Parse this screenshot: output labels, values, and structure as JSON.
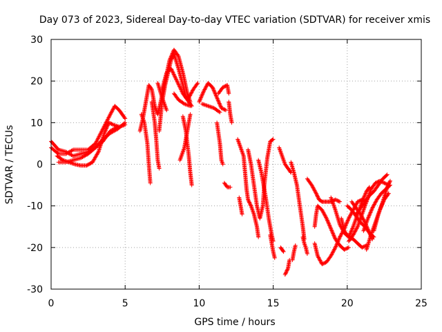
{
  "chart_data": {
    "type": "scatter",
    "title": "Day 073 of 2023, Sidereal Day-to-day VTEC variation (SDTVAR) for receiver xmis",
    "xlabel": "GPS time / hours",
    "ylabel": "SDTVAR / TECUs",
    "xlim": [
      0,
      25
    ],
    "ylim": [
      -30,
      30
    ],
    "xticks": [
      "0",
      "5",
      "10",
      "15",
      "20",
      "25"
    ],
    "yticks": [
      "-30",
      "-20",
      "-10",
      "0",
      "10",
      "20",
      "30"
    ],
    "grid": true,
    "marker": "+",
    "color": "#ff0000",
    "tracks": [
      [
        [
          0,
          5.5
        ],
        [
          0.5,
          3.5
        ],
        [
          1.0,
          3.0
        ],
        [
          1.5,
          2.0
        ],
        [
          2.0,
          2.5
        ],
        [
          2.5,
          3.0
        ],
        [
          3.0,
          4.0
        ],
        [
          3.5,
          6.0
        ],
        [
          4.0,
          7.5
        ],
        [
          4.5,
          8.5
        ],
        [
          5.0,
          10.0
        ]
      ],
      [
        [
          0,
          4.0
        ],
        [
          0.5,
          2.5
        ],
        [
          1.0,
          2.5
        ],
        [
          1.5,
          3.5
        ],
        [
          2.0,
          3.5
        ],
        [
          2.5,
          3.5
        ],
        [
          3.0,
          5.0
        ],
        [
          3.5,
          8.5
        ],
        [
          4.0,
          12.0
        ],
        [
          4.3,
          14.0
        ],
        [
          4.6,
          13.0
        ],
        [
          5.0,
          11.0
        ]
      ],
      [
        [
          0.4,
          2.0
        ],
        [
          0.8,
          1.0
        ],
        [
          1.2,
          0.5
        ],
        [
          1.6,
          0.0
        ],
        [
          2.0,
          -0.3
        ],
        [
          2.4,
          -0.3
        ],
        [
          2.8,
          0.5
        ],
        [
          3.2,
          3.0
        ],
        [
          3.6,
          7.5
        ],
        [
          3.9,
          10.0
        ],
        [
          4.2,
          9.5
        ],
        [
          4.6,
          9.0
        ],
        [
          5.0,
          9.5
        ]
      ],
      [
        [
          0.5,
          0.5
        ],
        [
          1.0,
          0.5
        ],
        [
          1.5,
          1.0
        ],
        [
          2.0,
          1.5
        ],
        [
          2.5,
          2.5
        ],
        [
          3.0,
          4.0
        ],
        [
          3.5,
          5.5
        ],
        [
          4.0,
          8.0
        ],
        [
          4.5,
          9.0
        ]
      ],
      [
        [
          6.0,
          8.0
        ],
        [
          6.2,
          11.0
        ],
        [
          6.4,
          15.0
        ],
        [
          6.6,
          19.0
        ],
        [
          6.8,
          18.0
        ],
        [
          7.0,
          14.0
        ],
        [
          7.2,
          12.0
        ],
        [
          7.4,
          15.0
        ],
        [
          7.7,
          20.0
        ],
        [
          8.0,
          25.0
        ],
        [
          8.3,
          27.5
        ],
        [
          8.6,
          26.0
        ],
        [
          8.9,
          22.0
        ],
        [
          9.2,
          17.0
        ],
        [
          9.4,
          15.0
        ]
      ],
      [
        [
          6.1,
          12.0
        ],
        [
          6.3,
          10.0
        ],
        [
          6.5,
          5.0
        ],
        [
          6.6,
          0.0
        ],
        [
          6.7,
          -4.5
        ]
      ],
      [
        [
          6.8,
          15.0
        ],
        [
          7.0,
          10.0
        ],
        [
          7.1,
          6.0
        ],
        [
          7.2,
          1.0
        ],
        [
          7.3,
          -1.0
        ]
      ],
      [
        [
          7.3,
          8.0
        ],
        [
          7.5,
          15.0
        ],
        [
          7.7,
          19.0
        ],
        [
          7.9,
          22.0
        ],
        [
          8.1,
          25.0
        ],
        [
          8.3,
          26.5
        ],
        [
          8.6,
          23.0
        ],
        [
          8.9,
          19.0
        ],
        [
          9.1,
          16.0
        ],
        [
          9.3,
          16.0
        ]
      ],
      [
        [
          7.5,
          18.0
        ],
        [
          7.8,
          22.0
        ],
        [
          8.1,
          23.0
        ],
        [
          8.5,
          20.0
        ],
        [
          8.9,
          17.0
        ],
        [
          9.3,
          15.0
        ],
        [
          9.5,
          14.0
        ]
      ],
      [
        [
          8.3,
          17.0
        ],
        [
          8.6,
          15.5
        ],
        [
          9.0,
          14.5
        ],
        [
          9.4,
          14.0
        ]
      ],
      [
        [
          7.2,
          19.5
        ],
        [
          7.5,
          16.0
        ],
        [
          7.8,
          13.0
        ]
      ],
      [
        [
          8.7,
          1.0
        ],
        [
          9.0,
          4.0
        ],
        [
          9.2,
          8.0
        ],
        [
          9.4,
          12.0
        ]
      ],
      [
        [
          8.9,
          11.5
        ],
        [
          9.1,
          8.0
        ],
        [
          9.3,
          2.0
        ],
        [
          9.4,
          -2.0
        ],
        [
          9.5,
          -5.0
        ]
      ],
      [
        [
          9.3,
          16.0
        ],
        [
          9.6,
          18.0
        ],
        [
          9.9,
          19.5
        ]
      ],
      [
        [
          10.0,
          15.0
        ],
        [
          10.3,
          17.5
        ],
        [
          10.6,
          19.5
        ],
        [
          10.9,
          18.5
        ],
        [
          11.2,
          16.0
        ],
        [
          11.5,
          13.5
        ],
        [
          11.8,
          13.0
        ]
      ],
      [
        [
          10.2,
          14.5
        ],
        [
          10.6,
          14.0
        ],
        [
          11.0,
          13.5
        ],
        [
          11.4,
          12.5
        ]
      ],
      [
        [
          11.3,
          17.0
        ],
        [
          11.6,
          18.5
        ],
        [
          11.9,
          19.0
        ],
        [
          12.0,
          17.0
        ]
      ],
      [
        [
          11.2,
          10.0
        ],
        [
          11.4,
          5.0
        ],
        [
          11.5,
          1.0
        ],
        [
          11.6,
          0.0
        ]
      ],
      [
        [
          12.0,
          15.0
        ],
        [
          12.1,
          12.0
        ],
        [
          12.2,
          10.0
        ]
      ],
      [
        [
          11.7,
          -4.5
        ],
        [
          11.9,
          -5.5
        ],
        [
          12.1,
          -5.5
        ]
      ],
      [
        [
          12.6,
          6.0
        ],
        [
          12.8,
          4.0
        ],
        [
          13.0,
          2.0
        ],
        [
          13.1,
          -2.0
        ],
        [
          13.2,
          -6.0
        ],
        [
          13.3,
          -8.5
        ],
        [
          13.5,
          -10.0
        ],
        [
          13.7,
          -12.0
        ],
        [
          13.9,
          -15.0
        ],
        [
          14.0,
          -17.5
        ]
      ],
      [
        [
          12.7,
          -8.0
        ],
        [
          12.8,
          -10.0
        ],
        [
          12.9,
          -12.0
        ]
      ],
      [
        [
          13.3,
          3.5
        ],
        [
          13.5,
          0.0
        ],
        [
          13.7,
          -5.0
        ],
        [
          13.9,
          -10.0
        ],
        [
          14.1,
          -13.0
        ],
        [
          14.3,
          -10.0
        ],
        [
          14.4,
          -5.0
        ],
        [
          14.6,
          1.5
        ],
        [
          14.8,
          5.5
        ],
        [
          15.0,
          6.0
        ]
      ],
      [
        [
          14.0,
          1.0
        ],
        [
          14.2,
          -2.0
        ],
        [
          14.5,
          -8.0
        ],
        [
          14.7,
          -13.0
        ],
        [
          14.9,
          -17.0
        ],
        [
          15.0,
          -18.5
        ]
      ],
      [
        [
          14.8,
          -17.0
        ],
        [
          14.9,
          -19.0
        ],
        [
          15.0,
          -21.0
        ],
        [
          15.1,
          -22.5
        ]
      ],
      [
        [
          15.4,
          4.0
        ],
        [
          15.6,
          2.0
        ],
        [
          15.8,
          0.0
        ],
        [
          16.0,
          -1.0
        ],
        [
          16.2,
          -2.0
        ]
      ],
      [
        [
          15.5,
          -20.0
        ],
        [
          15.6,
          -20.5
        ],
        [
          15.7,
          -21.0
        ]
      ],
      [
        [
          15.8,
          -26.5
        ],
        [
          16.0,
          -25.0
        ],
        [
          16.1,
          -23.0
        ]
      ],
      [
        [
          16.3,
          -23.0
        ],
        [
          16.4,
          -21.0
        ],
        [
          16.5,
          -19.5
        ]
      ],
      [
        [
          16.2,
          0.5
        ],
        [
          16.4,
          -2.0
        ],
        [
          16.6,
          -5.0
        ],
        [
          16.8,
          -10.0
        ],
        [
          17.0,
          -15.0
        ],
        [
          17.1,
          -18.0
        ]
      ],
      [
        [
          17.0,
          -17.5
        ],
        [
          17.1,
          -19.0
        ],
        [
          17.2,
          -20.0
        ],
        [
          17.3,
          -21.5
        ]
      ],
      [
        [
          17.3,
          -3.5
        ],
        [
          17.6,
          -5.0
        ],
        [
          17.9,
          -7.0
        ],
        [
          18.1,
          -8.5
        ],
        [
          18.3,
          -9.0
        ],
        [
          18.6,
          -9.0
        ],
        [
          18.9,
          -9.0
        ],
        [
          19.2,
          -8.5
        ],
        [
          19.5,
          -9.0
        ]
      ],
      [
        [
          17.8,
          -15.0
        ],
        [
          17.9,
          -12.0
        ],
        [
          18.0,
          -10.0
        ],
        [
          18.3,
          -11.0
        ],
        [
          18.6,
          -13.0
        ],
        [
          18.9,
          -15.5
        ],
        [
          19.2,
          -18.0
        ],
        [
          19.5,
          -19.5
        ],
        [
          19.8,
          -20.5
        ],
        [
          20.1,
          -20.0
        ]
      ],
      [
        [
          17.8,
          -19.0
        ],
        [
          18.0,
          -22.0
        ],
        [
          18.3,
          -24.0
        ],
        [
          18.6,
          -23.5
        ],
        [
          18.9,
          -22.0
        ],
        [
          19.2,
          -20.0
        ],
        [
          19.5,
          -17.5
        ],
        [
          19.8,
          -15.5
        ],
        [
          20.1,
          -13.0
        ],
        [
          20.4,
          -11.0
        ],
        [
          20.7,
          -9.0
        ],
        [
          21.0,
          -8.5
        ],
        [
          21.3,
          -9.0
        ]
      ],
      [
        [
          18.9,
          -8.0
        ],
        [
          19.2,
          -11.0
        ],
        [
          19.5,
          -14.5
        ],
        [
          19.8,
          -16.5
        ],
        [
          20.1,
          -17.5
        ],
        [
          20.4,
          -18.0
        ],
        [
          20.7,
          -19.0
        ],
        [
          21.0,
          -20.0
        ],
        [
          21.3,
          -19.5
        ]
      ],
      [
        [
          19.6,
          -13.0
        ],
        [
          19.8,
          -16.0
        ],
        [
          20.1,
          -17.5
        ],
        [
          20.4,
          -15.0
        ],
        [
          20.7,
          -12.0
        ],
        [
          21.0,
          -9.0
        ],
        [
          21.3,
          -6.5
        ],
        [
          21.5,
          -5.5
        ]
      ],
      [
        [
          20.0,
          -10.0
        ],
        [
          20.3,
          -11.0
        ],
        [
          20.6,
          -12.5
        ],
        [
          20.9,
          -14.0
        ],
        [
          21.2,
          -15.0
        ],
        [
          21.5,
          -16.5
        ],
        [
          21.8,
          -17.5
        ]
      ],
      [
        [
          20.3,
          -9.0
        ],
        [
          20.6,
          -10.5
        ],
        [
          20.9,
          -12.0
        ],
        [
          21.2,
          -14.0
        ],
        [
          21.5,
          -16.5
        ],
        [
          21.7,
          -18.0
        ]
      ],
      [
        [
          20.1,
          -18.5
        ],
        [
          20.4,
          -17.0
        ],
        [
          20.7,
          -15.0
        ],
        [
          21.0,
          -12.0
        ],
        [
          21.3,
          -9.0
        ],
        [
          21.6,
          -6.0
        ],
        [
          21.9,
          -4.5
        ],
        [
          22.2,
          -4.0
        ],
        [
          22.5,
          -4.5
        ],
        [
          22.8,
          -5.0
        ]
      ],
      [
        [
          20.6,
          -12.0
        ],
        [
          20.9,
          -10.5
        ],
        [
          21.2,
          -9.0
        ],
        [
          21.5,
          -7.5
        ],
        [
          21.8,
          -6.5
        ],
        [
          22.1,
          -5.0
        ],
        [
          22.4,
          -3.5
        ],
        [
          22.7,
          -2.5
        ]
      ],
      [
        [
          21.1,
          -16.0
        ],
        [
          21.4,
          -13.0
        ],
        [
          21.7,
          -10.5
        ],
        [
          22.0,
          -8.5
        ],
        [
          22.3,
          -7.0
        ],
        [
          22.6,
          -6.0
        ],
        [
          22.9,
          -5.0
        ]
      ],
      [
        [
          21.3,
          -20.5
        ],
        [
          21.6,
          -17.0
        ],
        [
          21.9,
          -14.0
        ],
        [
          22.2,
          -11.0
        ],
        [
          22.5,
          -8.5
        ],
        [
          22.8,
          -7.0
        ]
      ],
      [
        [
          21.8,
          -16.0
        ],
        [
          22.1,
          -12.0
        ],
        [
          22.4,
          -9.0
        ],
        [
          22.7,
          -5.5
        ],
        [
          22.9,
          -4.0
        ]
      ]
    ]
  }
}
